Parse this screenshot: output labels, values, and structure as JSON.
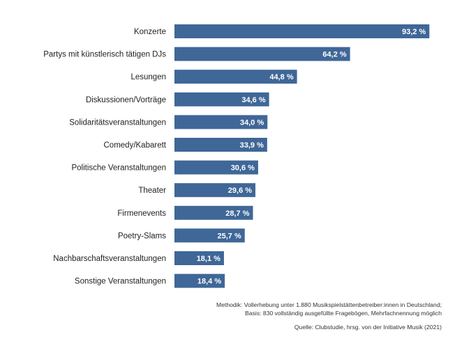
{
  "chart_data": {
    "type": "bar",
    "orientation": "horizontal",
    "categories": [
      "Konzerte",
      "Partys mit künstlerisch tätigen DJs",
      "Lesungen",
      "Diskussionen/Vorträge",
      "Solidaritätsveranstaltungen",
      "Comedy/Kabarett",
      "Politische Veranstaltungen",
      "Theater",
      "Firmenevents",
      "Poetry-Slams",
      "Nachbarschaftsveranstaltungen",
      "Sonstige Veranstaltungen"
    ],
    "values": [
      93.2,
      64.2,
      44.8,
      34.6,
      34.0,
      33.9,
      30.6,
      29.6,
      28.7,
      25.7,
      18.1,
      18.4
    ],
    "value_labels": [
      "93,2 %",
      "64,2 %",
      "44,8 %",
      "34,6 %",
      "34,0 %",
      "33,9 %",
      "30,6 %",
      "29,6 %",
      "28,7 %",
      "25,7 %",
      "18,1 %",
      "18,4 %"
    ],
    "xlim": [
      0,
      100
    ],
    "grid": false,
    "bar_color": "#3f6797",
    "label_color": "#ffffff",
    "category_color": "#222222"
  },
  "footnotes": {
    "methodik": "Methodik: Vollerhebung unter 1.880 Musikspielstättenbetreiber:innen in Deutschland;",
    "basis": "Basis: 830 vollständig ausgefüllte Fragebögen, Mehrfachnennung möglich",
    "quelle": "Quelle: Clubstudie, hrsg. von der Initiative Musik (2021)"
  }
}
